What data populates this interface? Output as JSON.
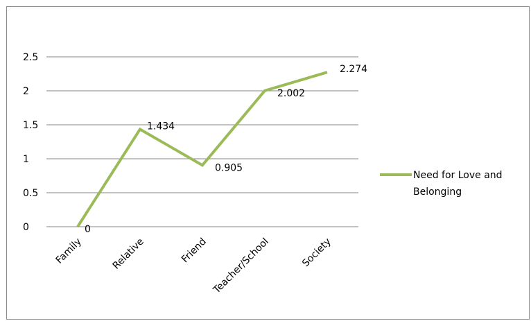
{
  "chart_data": {
    "type": "line",
    "categories": [
      "Family",
      "Relative",
      "Friend",
      "Teacher/School",
      "Society"
    ],
    "series": [
      {
        "name": "Need for Love and Belonging",
        "values": [
          0,
          1.434,
          0.905,
          2.002,
          2.274
        ],
        "data_labels": [
          "0",
          "1.434",
          "0.905",
          "2.002",
          "2.274"
        ],
        "color": "#9bbb59"
      }
    ],
    "ylim": [
      0,
      2.5
    ],
    "yticks": [
      {
        "value": 0,
        "label": "0"
      },
      {
        "value": 0.5,
        "label": "0.5"
      },
      {
        "value": 1,
        "label": "1"
      },
      {
        "value": 1.5,
        "label": "1.5"
      },
      {
        "value": 2,
        "label": "2"
      },
      {
        "value": 2.5,
        "label": "2.5"
      }
    ],
    "grid": true,
    "legend": {
      "position": "right",
      "lines": [
        "Need for Love and",
        "Belonging"
      ]
    },
    "gridline_color": "#868686"
  }
}
